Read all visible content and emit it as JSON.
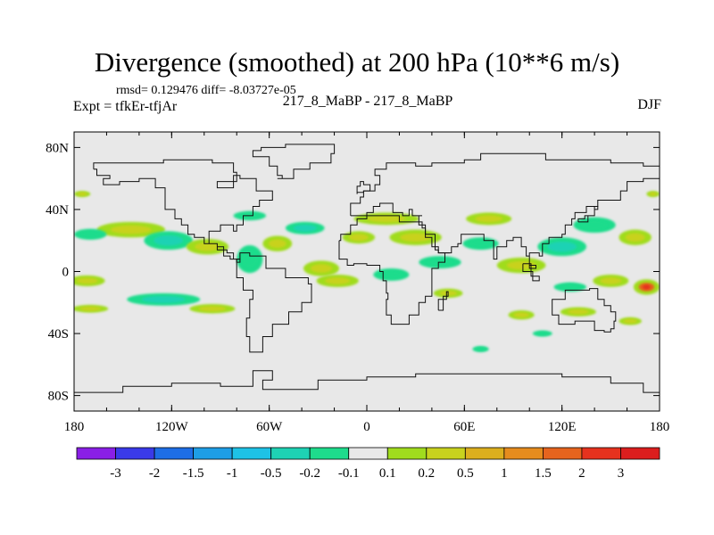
{
  "chart_data": {
    "type": "heatmap",
    "title": "Divergence (smoothed) at 200 hPa (10**6 m/s)",
    "stats": "rmsd= 0.129476 diff= -8.03727e-05",
    "left_label": "Expt = tfkEr-tfjAr",
    "center_label": "217_8_MaBP - 217_8_MaBP",
    "right_label": "DJF",
    "x_ticks": [
      "180",
      "120W",
      "60W",
      "0",
      "60E",
      "120E",
      "180"
    ],
    "x_range": [
      -180,
      180
    ],
    "y_ticks": [
      "80N",
      "40N",
      "0",
      "40S",
      "80S"
    ],
    "y_range": [
      -90,
      90
    ],
    "colorbar": {
      "levels": [
        "-3",
        "-2",
        "-1.5",
        "-1",
        "-0.5",
        "-0.2",
        "-0.1",
        "0.1",
        "0.2",
        "0.5",
        "1",
        "1.5",
        "2",
        "3"
      ],
      "colors": [
        "#8a1fe6",
        "#3a3ae8",
        "#1e6ee6",
        "#1e9ee6",
        "#1ec2e6",
        "#1ed2b4",
        "#1edc8c",
        "#e8e8e8",
        "#a0dc1e",
        "#c8d21e",
        "#dcaf1e",
        "#e68c1e",
        "#e6641e",
        "#e6321e",
        "#dc1e1e"
      ]
    },
    "blobs": [
      {
        "lon": -145,
        "lat": 27,
        "w": 42,
        "h": 10,
        "value": 0.4
      },
      {
        "lon": -122,
        "lat": 20,
        "w": 30,
        "h": 12,
        "value": -0.3
      },
      {
        "lon": -98,
        "lat": 16,
        "w": 26,
        "h": 10,
        "value": 0.3
      },
      {
        "lon": -170,
        "lat": 24,
        "w": 20,
        "h": 7,
        "value": -0.2
      },
      {
        "lon": -172,
        "lat": -6,
        "w": 22,
        "h": 7,
        "value": 0.3
      },
      {
        "lon": -125,
        "lat": -18,
        "w": 45,
        "h": 8,
        "value": -0.3
      },
      {
        "lon": -170,
        "lat": -24,
        "w": 22,
        "h": 5,
        "value": 0.2
      },
      {
        "lon": -95,
        "lat": -24,
        "w": 28,
        "h": 6,
        "value": 0.2
      },
      {
        "lon": -72,
        "lat": 8,
        "w": 16,
        "h": 18,
        "value": -0.2
      },
      {
        "lon": -55,
        "lat": 18,
        "w": 18,
        "h": 10,
        "value": 0.2
      },
      {
        "lon": -72,
        "lat": 36,
        "w": 20,
        "h": 6,
        "value": -0.2
      },
      {
        "lon": -38,
        "lat": 28,
        "w": 24,
        "h": 8,
        "value": -0.3
      },
      {
        "lon": -28,
        "lat": 2,
        "w": 22,
        "h": 10,
        "value": 0.4
      },
      {
        "lon": -18,
        "lat": -6,
        "w": 26,
        "h": 8,
        "value": 0.3
      },
      {
        "lon": -5,
        "lat": 22,
        "w": 20,
        "h": 8,
        "value": 0.2
      },
      {
        "lon": 12,
        "lat": 34,
        "w": 40,
        "h": 8,
        "value": 0.2
      },
      {
        "lon": 30,
        "lat": 22,
        "w": 32,
        "h": 10,
        "value": 0.4
      },
      {
        "lon": 45,
        "lat": 6,
        "w": 26,
        "h": 8,
        "value": -0.2
      },
      {
        "lon": 15,
        "lat": -2,
        "w": 22,
        "h": 8,
        "value": -0.2
      },
      {
        "lon": 50,
        "lat": -14,
        "w": 18,
        "h": 6,
        "value": 0.2
      },
      {
        "lon": 75,
        "lat": 34,
        "w": 28,
        "h": 8,
        "value": 0.2
      },
      {
        "lon": 70,
        "lat": 18,
        "w": 22,
        "h": 8,
        "value": -0.2
      },
      {
        "lon": 95,
        "lat": 4,
        "w": 30,
        "h": 10,
        "value": 0.4
      },
      {
        "lon": 120,
        "lat": 16,
        "w": 30,
        "h": 12,
        "value": -0.3
      },
      {
        "lon": 140,
        "lat": 30,
        "w": 26,
        "h": 10,
        "value": -0.2
      },
      {
        "lon": 165,
        "lat": 22,
        "w": 20,
        "h": 10,
        "value": 0.3
      },
      {
        "lon": 172,
        "lat": -10,
        "w": 16,
        "h": 10,
        "value": 1.6
      },
      {
        "lon": 150,
        "lat": -6,
        "w": 22,
        "h": 8,
        "value": 0.4
      },
      {
        "lon": 125,
        "lat": -10,
        "w": 20,
        "h": 6,
        "value": -0.2
      },
      {
        "lon": 95,
        "lat": -28,
        "w": 16,
        "h": 6,
        "value": 0.4
      },
      {
        "lon": 130,
        "lat": -26,
        "w": 22,
        "h": 6,
        "value": 0.2
      },
      {
        "lon": 162,
        "lat": -32,
        "w": 14,
        "h": 5,
        "value": 0.2
      },
      {
        "lon": -175,
        "lat": 50,
        "w": 10,
        "h": 4,
        "value": 0.2
      },
      {
        "lon": 176,
        "lat": 50,
        "w": 8,
        "h": 4,
        "value": 0.2
      },
      {
        "lon": 70,
        "lat": -50,
        "w": 10,
        "h": 4,
        "value": -0.2
      },
      {
        "lon": 108,
        "lat": -40,
        "w": 12,
        "h": 4,
        "value": -0.2
      }
    ],
    "coastlines": [
      [
        [
          -168,
          66
        ],
        [
          -160,
          70
        ],
        [
          -140,
          70
        ],
        [
          -125,
          70
        ],
        [
          -110,
          72
        ],
        [
          -95,
          72
        ],
        [
          -82,
          70
        ],
        [
          -80,
          64
        ],
        [
          -92,
          58
        ],
        [
          -82,
          54
        ],
        [
          -78,
          62
        ],
        [
          -68,
          60
        ],
        [
          -58,
          52
        ],
        [
          -66,
          46
        ],
        [
          -70,
          42
        ],
        [
          -76,
          36
        ],
        [
          -80,
          30
        ],
        [
          -82,
          26
        ],
        [
          -90,
          30
        ],
        [
          -97,
          26
        ],
        [
          -97,
          20
        ],
        [
          -92,
          18
        ],
        [
          -88,
          16
        ],
        [
          -84,
          10
        ],
        [
          -80,
          8
        ],
        [
          -78,
          6
        ],
        [
          -82,
          8
        ],
        [
          -86,
          12
        ],
        [
          -92,
          14
        ],
        [
          -100,
          18
        ],
        [
          -106,
          22
        ],
        [
          -110,
          24
        ],
        [
          -114,
          30
        ],
        [
          -118,
          34
        ],
        [
          -124,
          40
        ],
        [
          -124,
          48
        ],
        [
          -130,
          54
        ],
        [
          -140,
          60
        ],
        [
          -152,
          58
        ],
        [
          -162,
          56
        ],
        [
          -158,
          60
        ],
        [
          -166,
          62
        ],
        [
          -168,
          66
        ]
      ],
      [
        [
          -78,
          8
        ],
        [
          -72,
          12
        ],
        [
          -62,
          10
        ],
        [
          -50,
          2
        ],
        [
          -36,
          -4
        ],
        [
          -34,
          -8
        ],
        [
          -40,
          -20
        ],
        [
          -48,
          -26
        ],
        [
          -58,
          -34
        ],
        [
          -64,
          -42
        ],
        [
          -68,
          -52
        ],
        [
          -72,
          -52
        ],
        [
          -74,
          -42
        ],
        [
          -72,
          -30
        ],
        [
          -70,
          -18
        ],
        [
          -76,
          -12
        ],
        [
          -80,
          -4
        ],
        [
          -80,
          0
        ],
        [
          -78,
          8
        ]
      ],
      [
        [
          -10,
          36
        ],
        [
          -10,
          44
        ],
        [
          -4,
          44
        ],
        [
          -2,
          48
        ],
        [
          5,
          52
        ],
        [
          8,
          56
        ],
        [
          5,
          62
        ],
        [
          12,
          66
        ],
        [
          20,
          70
        ],
        [
          30,
          70
        ],
        [
          40,
          68
        ],
        [
          60,
          70
        ],
        [
          70,
          72
        ],
        [
          90,
          76
        ],
        [
          110,
          76
        ],
        [
          130,
          72
        ],
        [
          150,
          72
        ],
        [
          170,
          70
        ],
        [
          180,
          68
        ],
        [
          180,
          64
        ],
        [
          170,
          60
        ],
        [
          160,
          58
        ],
        [
          156,
          52
        ],
        [
          142,
          46
        ],
        [
          135,
          42
        ],
        [
          128,
          38
        ],
        [
          126,
          34
        ],
        [
          122,
          30
        ],
        [
          120,
          24
        ],
        [
          112,
          22
        ],
        [
          108,
          18
        ],
        [
          106,
          10
        ],
        [
          100,
          12
        ],
        [
          100,
          6
        ],
        [
          104,
          2
        ],
        [
          100,
          4
        ],
        [
          98,
          10
        ],
        [
          95,
          16
        ],
        [
          90,
          22
        ],
        [
          86,
          20
        ],
        [
          80,
          16
        ],
        [
          78,
          8
        ],
        [
          72,
          20
        ],
        [
          66,
          24
        ],
        [
          58,
          24
        ],
        [
          56,
          18
        ],
        [
          52,
          16
        ],
        [
          44,
          12
        ],
        [
          42,
          14
        ],
        [
          36,
          24
        ],
        [
          32,
          30
        ],
        [
          34,
          36
        ],
        [
          28,
          36
        ],
        [
          26,
          40
        ],
        [
          22,
          36
        ],
        [
          16,
          38
        ],
        [
          12,
          44
        ],
        [
          8,
          44
        ],
        [
          4,
          42
        ],
        [
          0,
          38
        ],
        [
          -6,
          36
        ],
        [
          -10,
          36
        ]
      ],
      [
        [
          -17,
          20
        ],
        [
          -17,
          14
        ],
        [
          -12,
          8
        ],
        [
          -8,
          4
        ],
        [
          0,
          5
        ],
        [
          8,
          4
        ],
        [
          10,
          0
        ],
        [
          12,
          -6
        ],
        [
          13,
          -14
        ],
        [
          12,
          -18
        ],
        [
          15,
          -28
        ],
        [
          18,
          -34
        ],
        [
          26,
          -34
        ],
        [
          32,
          -28
        ],
        [
          36,
          -20
        ],
        [
          40,
          -16
        ],
        [
          40,
          -10
        ],
        [
          40,
          -4
        ],
        [
          44,
          2
        ],
        [
          48,
          6
        ],
        [
          51,
          12
        ],
        [
          44,
          12
        ],
        [
          40,
          16
        ],
        [
          36,
          22
        ],
        [
          34,
          28
        ],
        [
          32,
          32
        ],
        [
          20,
          32
        ],
        [
          10,
          36
        ],
        [
          0,
          36
        ],
        [
          -6,
          34
        ],
        [
          -10,
          30
        ],
        [
          -16,
          24
        ],
        [
          -17,
          20
        ]
      ],
      [
        [
          114,
          -22
        ],
        [
          122,
          -18
        ],
        [
          130,
          -12
        ],
        [
          137,
          -12
        ],
        [
          142,
          -11
        ],
        [
          146,
          -18
        ],
        [
          150,
          -22
        ],
        [
          153,
          -26
        ],
        [
          152,
          -32
        ],
        [
          150,
          -37
        ],
        [
          146,
          -39
        ],
        [
          140,
          -38
        ],
        [
          134,
          -32
        ],
        [
          128,
          -32
        ],
        [
          118,
          -34
        ],
        [
          114,
          -28
        ],
        [
          114,
          -22
        ]
      ],
      [
        [
          -55,
          60
        ],
        [
          -45,
          60
        ],
        [
          -35,
          66
        ],
        [
          -22,
          70
        ],
        [
          -20,
          76
        ],
        [
          -30,
          82
        ],
        [
          -50,
          82
        ],
        [
          -65,
          80
        ],
        [
          -70,
          78
        ],
        [
          -60,
          74
        ],
        [
          -55,
          68
        ],
        [
          -52,
          62
        ],
        [
          -55,
          60
        ]
      ],
      [
        [
          -6,
          50
        ],
        [
          -2,
          51
        ],
        [
          2,
          52
        ],
        [
          -2,
          56
        ],
        [
          -4,
          58
        ],
        [
          -6,
          55
        ],
        [
          -6,
          50
        ]
      ],
      [
        [
          44,
          -25
        ],
        [
          49,
          -18
        ],
        [
          50,
          -13
        ],
        [
          47,
          -16
        ],
        [
          44,
          -25
        ]
      ],
      [
        [
          130,
          32
        ],
        [
          134,
          34
        ],
        [
          140,
          36
        ],
        [
          142,
          40
        ],
        [
          140,
          42
        ],
        [
          136,
          36
        ],
        [
          130,
          32
        ]
      ],
      [
        [
          96,
          5
        ],
        [
          102,
          0
        ],
        [
          106,
          -6
        ],
        [
          101,
          -3
        ],
        [
          96,
          5
        ]
      ],
      [
        [
          -180,
          -78
        ],
        [
          -150,
          -78
        ],
        [
          -120,
          -74
        ],
        [
          -90,
          -72
        ],
        [
          -70,
          -74
        ],
        [
          -58,
          -64
        ],
        [
          -64,
          -70
        ],
        [
          -60,
          -76
        ],
        [
          -30,
          -76
        ],
        [
          0,
          -70
        ],
        [
          30,
          -68
        ],
        [
          60,
          -66
        ],
        [
          90,
          -66
        ],
        [
          120,
          -66
        ],
        [
          150,
          -68
        ],
        [
          170,
          -72
        ],
        [
          180,
          -78
        ]
      ]
    ]
  }
}
